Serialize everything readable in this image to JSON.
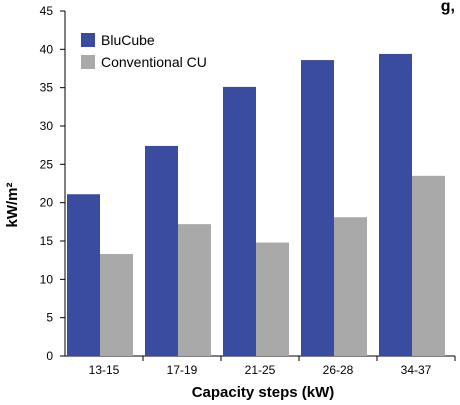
{
  "chart_data": {
    "type": "bar",
    "title_fragment": "g,",
    "xlabel": "Capacity steps (kW)",
    "ylabel": "kW/m²",
    "categories": [
      "13-15",
      "17-19",
      "21-25",
      "26-28",
      "34-37"
    ],
    "series": [
      {
        "name": "BluCube",
        "values": [
          21.1,
          27.4,
          35.1,
          38.6,
          39.4
        ],
        "color": "#3a4ca0"
      },
      {
        "name": "Conventional CU",
        "values": [
          13.3,
          17.2,
          14.8,
          18.1,
          23.5
        ],
        "color": "#a9a9a9"
      }
    ],
    "ylim": [
      0,
      45
    ],
    "yticks": [
      "0",
      "5",
      "10",
      "15",
      "20",
      "25",
      "30",
      "35",
      "40",
      "45"
    ],
    "legend_position": "top-left",
    "background": "#ffffff"
  }
}
